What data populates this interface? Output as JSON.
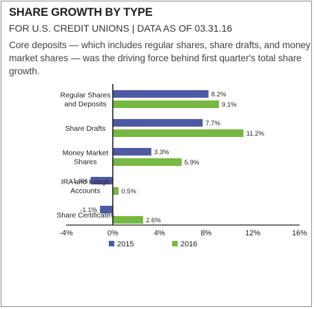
{
  "header": {
    "title": "SHARE GROWTH BY TYPE",
    "subtitle": "FOR U.S. CREDIT UNIONS | DATA AS OF 03.31.16",
    "description": "Core deposits — which includes regular shares, share drafts, and money market shares — was the driving force behind first quarter's total share growth."
  },
  "chart_data": {
    "type": "bar",
    "orientation": "horizontal",
    "categories": [
      [
        "Regular Shares",
        "and Deposits"
      ],
      [
        "Share Drafts"
      ],
      [
        "Money Market",
        "Shares"
      ],
      [
        "IRA and Keogh",
        "Accounts"
      ],
      [
        "Share Certificates"
      ]
    ],
    "series": [
      {
        "name": "2015",
        "color": "#4f5aa6",
        "values": [
          8.2,
          7.7,
          3.3,
          -1.9,
          -1.1
        ],
        "labels": [
          "8.2%",
          "7.7%",
          "3.3%",
          "-1.9%",
          "-1.1%"
        ]
      },
      {
        "name": "2016",
        "color": "#76b942",
        "values": [
          9.1,
          11.2,
          5.9,
          0.5,
          2.6
        ],
        "labels": [
          "9.1%",
          "11.2%",
          "5.9%",
          "0.5%",
          "2.6%"
        ]
      }
    ],
    "xlim": [
      -4,
      16
    ],
    "xticks": [
      -4,
      0,
      4,
      8,
      12,
      16
    ],
    "xtick_labels": [
      "-4%",
      "0%",
      "4%",
      "8%",
      "12%",
      "16%"
    ],
    "grid": false,
    "legend_position": "bottom"
  }
}
